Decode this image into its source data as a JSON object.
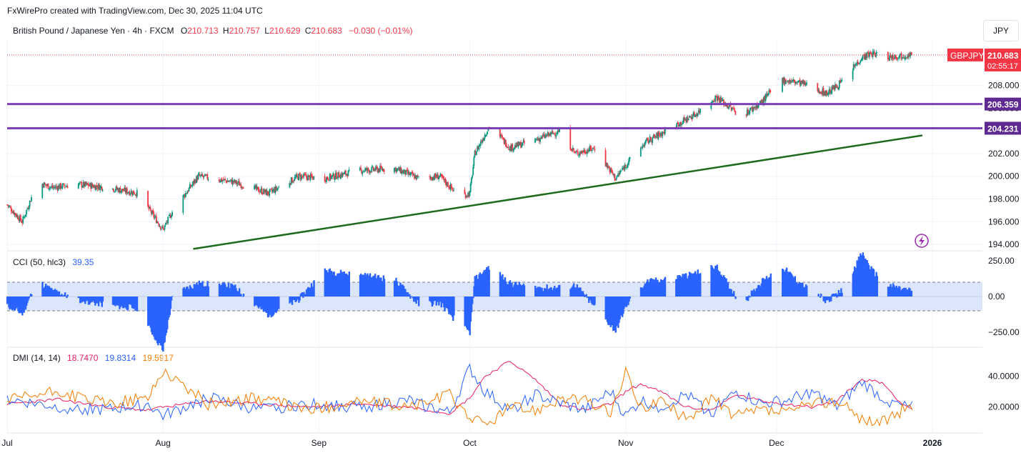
{
  "header": {
    "text": "FxWirePro created with TradingView.com, Dec 30, 2025 11:04 UTC"
  },
  "ohlc": {
    "symbol": "British Pound / Japanese Yen · 4h · FXCM",
    "o_label": "O",
    "o": "210.713",
    "h_label": "H",
    "h": "210.757",
    "l_label": "L",
    "l": "210.629",
    "c_label": "C",
    "c": "210.683",
    "change": "−0.030 (−0.01%)"
  },
  "currency": "JPY",
  "price_tags": {
    "symbol": "GBPJPY",
    "price": "210.683",
    "countdown": "02:55:17",
    "level1": "206.359",
    "level2": "204.231"
  },
  "cci_legend": {
    "name": "CCI (50, hlc3)",
    "value": "39.35"
  },
  "dmi_legend": {
    "name": "DMI (14, 14)",
    "v1": "18.7470",
    "v2": "19.8314",
    "v3": "19.5917"
  },
  "colors": {
    "up": "#089981",
    "down": "#f23645",
    "purple": "#7b3fb6",
    "trend": "#1f6a1f",
    "cci": "#2962ff",
    "cci_band": "#dbe6fb",
    "dmi_plus": "#2962ff",
    "dmi_minus": "#f57c00",
    "adx": "#e91e63",
    "tag_red": "#f23645"
  },
  "chart_data": [
    {
      "type": "candlestick",
      "title": "British Pound / Japanese Yen · 4h · FXCM",
      "ylim": [
        193.5,
        212
      ],
      "yticks": [
        "194.000",
        "196.000",
        "198.000",
        "200.000",
        "202.000",
        "204.000",
        "206.000",
        "208.000"
      ],
      "xticks": [
        "Jul",
        "Aug",
        "Sep",
        "Oct",
        "Nov",
        "Dec",
        "2026"
      ],
      "xtick_dates": [
        0,
        31,
        62,
        92,
        123,
        153,
        184
      ],
      "date_range_days": [
        0,
        184
      ],
      "series_close_anchors": {
        "days": [
          0,
          3,
          6,
          9,
          14,
          20,
          26,
          31,
          33,
          38,
          45,
          52,
          58,
          63,
          70,
          77,
          82,
          86,
          90,
          92,
          93,
          96,
          100,
          105,
          110,
          113,
          117,
          121,
          123,
          127,
          131,
          137,
          141,
          146,
          150,
          154,
          158,
          163,
          166,
          170,
          172,
          175,
          179
        ],
        "closes": [
          197.5,
          196.0,
          199.5,
          199.0,
          199.3,
          199.0,
          198.5,
          195.3,
          197.0,
          200.0,
          199.5,
          198.5,
          200.0,
          199.8,
          200.5,
          200.7,
          199.8,
          200.0,
          198.2,
          198.5,
          202.0,
          204.5,
          202.5,
          203.2,
          204.0,
          202.0,
          202.5,
          199.8,
          201.0,
          203.0,
          204.0,
          205.5,
          207.0,
          205.3,
          206.5,
          208.5,
          208.2,
          207.3,
          208.3,
          210.5,
          210.8,
          210.5,
          210.7
        ]
      },
      "horizontal_levels": [
        206.359,
        204.231
      ],
      "trendline": {
        "start": [
          37,
          193.6
        ],
        "end": [
          182,
          203.6
        ]
      },
      "last_price": 210.683
    },
    {
      "type": "bar",
      "title": "CCI (50, hlc3)",
      "ylim": [
        -350,
        300
      ],
      "yticks": [
        "250.00",
        "0.00",
        "−250.00"
      ],
      "band": [
        100,
        -100
      ],
      "series_anchors": {
        "days": [
          0,
          3,
          6,
          9,
          14,
          20,
          26,
          31,
          33,
          38,
          45,
          52,
          58,
          63,
          70,
          77,
          82,
          86,
          90,
          92,
          93,
          96,
          100,
          105,
          110,
          113,
          117,
          121,
          123,
          127,
          131,
          137,
          141,
          146,
          150,
          154,
          158,
          163,
          166,
          170,
          172,
          175,
          179
        ],
        "values": [
          -60,
          -120,
          110,
          40,
          -20,
          -60,
          -80,
          -380,
          20,
          90,
          70,
          -130,
          -20,
          180,
          150,
          120,
          -60,
          -40,
          -200,
          -250,
          120,
          210,
          90,
          60,
          60,
          80,
          -80,
          -240,
          -70,
          100,
          120,
          160,
          210,
          -60,
          100,
          210,
          80,
          -30,
          40,
          300,
          180,
          80,
          40
        ]
      },
      "last_value": 39.35
    },
    {
      "type": "line",
      "title": "DMI (14, 14)",
      "ylim": [
        5,
        58
      ],
      "yticks": [
        "40.0000",
        "20.0000"
      ],
      "series": [
        {
          "name": "ADX",
          "days": [
            0,
            10,
            20,
            28,
            31,
            40,
            50,
            60,
            70,
            80,
            88,
            92,
            95,
            100,
            105,
            110,
            115,
            120,
            123,
            126,
            130,
            135,
            140,
            145,
            150,
            155,
            160,
            165,
            170,
            174,
            178,
            180
          ],
          "values": [
            22,
            25,
            20,
            18,
            20,
            24,
            22,
            20,
            22,
            20,
            16,
            26,
            40,
            50,
            38,
            22,
            18,
            22,
            30,
            35,
            30,
            20,
            18,
            28,
            24,
            22,
            20,
            24,
            38,
            36,
            22,
            18.7
          ]
        },
        {
          "name": "+DI",
          "days": [
            0,
            10,
            20,
            28,
            31,
            40,
            50,
            60,
            70,
            80,
            88,
            92,
            95,
            100,
            105,
            110,
            115,
            120,
            123,
            126,
            130,
            135,
            140,
            145,
            150,
            155,
            160,
            165,
            170,
            174,
            178,
            180
          ],
          "values": [
            25,
            20,
            18,
            22,
            14,
            26,
            18,
            22,
            20,
            24,
            16,
            45,
            30,
            18,
            28,
            22,
            18,
            30,
            14,
            24,
            20,
            28,
            16,
            30,
            22,
            24,
            30,
            20,
            36,
            26,
            20,
            19.8
          ]
        },
        {
          "name": "−DI",
          "days": [
            0,
            10,
            20,
            28,
            31,
            40,
            50,
            60,
            70,
            80,
            88,
            92,
            95,
            100,
            105,
            110,
            115,
            120,
            123,
            126,
            130,
            135,
            140,
            145,
            150,
            155,
            160,
            165,
            170,
            174,
            178,
            180
          ],
          "values": [
            24,
            30,
            22,
            26,
            44,
            22,
            26,
            18,
            24,
            20,
            28,
            14,
            8,
            20,
            18,
            26,
            24,
            16,
            42,
            20,
            24,
            12,
            26,
            14,
            18,
            16,
            22,
            24,
            12,
            10,
            18,
            19.6
          ]
        }
      ]
    }
  ]
}
